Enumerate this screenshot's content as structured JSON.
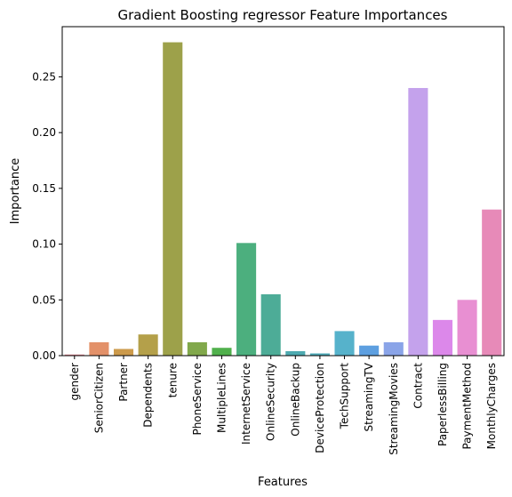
{
  "chart_data": {
    "type": "bar",
    "title": "Gradient Boosting regressor Feature Importances",
    "xlabel": "Features",
    "ylabel": "Importance",
    "ylim": [
      0,
      0.295
    ],
    "yticks": [
      0.0,
      0.05,
      0.1,
      0.15,
      0.2,
      0.25
    ],
    "ytick_labels": [
      "0.00",
      "0.05",
      "0.10",
      "0.15",
      "0.20",
      "0.25"
    ],
    "grid": false,
    "categories": [
      "gender",
      "SeniorCitizen",
      "Partner",
      "Dependents",
      "tenure",
      "PhoneService",
      "MultipleLines",
      "InternetService",
      "OnlineSecurity",
      "OnlineBackup",
      "DeviceProtection",
      "TechSupport",
      "StreamingTV",
      "StreamingMovies",
      "Contract",
      "PaperlessBilling",
      "PaymentMethod",
      "MonthlyCharges"
    ],
    "values": [
      0.001,
      0.012,
      0.006,
      0.019,
      0.281,
      0.012,
      0.007,
      0.101,
      0.055,
      0.004,
      0.002,
      0.022,
      0.009,
      0.012,
      0.24,
      0.032,
      0.05,
      0.131
    ],
    "colors": [
      "#e5858f",
      "#e39169",
      "#cc9a4b",
      "#b4a04a",
      "#9da14a",
      "#81a84b",
      "#50b04c",
      "#4caf7e",
      "#4dac97",
      "#4eaab0",
      "#50abb8",
      "#56b2cb",
      "#5d9fe0",
      "#8aa4e8",
      "#c4a2ec",
      "#dc88ea",
      "#e88fd2",
      "#e78ab8"
    ]
  }
}
